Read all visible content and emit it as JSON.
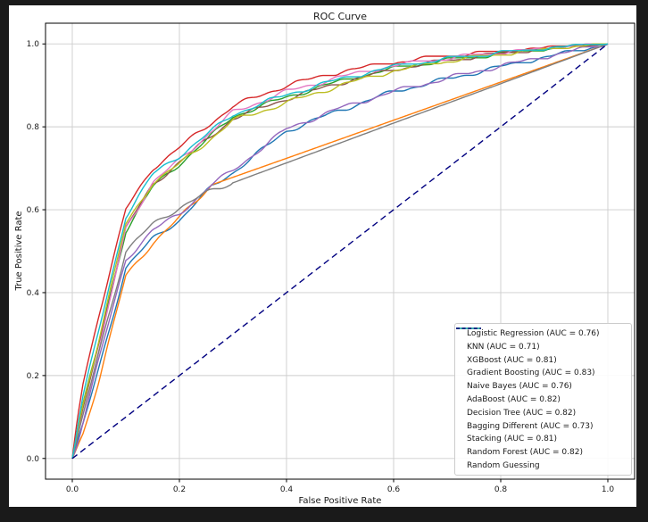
{
  "window": {
    "frame_color": "#1a1a1a",
    "figure_background": "#ffffff"
  },
  "chart_data": {
    "type": "line",
    "title": "ROC Curve",
    "xlabel": "False Positive Rate",
    "ylabel": "True Positive Rate",
    "xlim": [
      -0.05,
      1.05
    ],
    "ylim": [
      -0.05,
      1.05
    ],
    "xticks": [
      0.0,
      0.2,
      0.4,
      0.6,
      0.8,
      1.0
    ],
    "yticks": [
      0.0,
      0.2,
      0.4,
      0.6,
      0.8,
      1.0
    ],
    "xtick_labels": [
      "0.0",
      "0.2",
      "0.4",
      "0.6",
      "0.8",
      "1.0"
    ],
    "ytick_labels": [
      "0.0",
      "0.2",
      "0.4",
      "0.6",
      "0.8",
      "1.0"
    ],
    "grid": true,
    "grid_color": "#cdcdcd",
    "legend_position": "lower right",
    "series": [
      {
        "name": "Logistic Regression",
        "auc": 0.76,
        "label": "Logistic Regression (AUC = 0.76)",
        "color": "#1f77b4",
        "dash": false,
        "noise_amp": 0.004,
        "noise_until": 1.0,
        "x": [
          0,
          0.01,
          0.02,
          0.05,
          0.1,
          0.15,
          0.2,
          0.26,
          0.3,
          0.4,
          0.5,
          0.6,
          0.7,
          0.8,
          0.9,
          1.0
        ],
        "y": [
          0,
          0.04,
          0.08,
          0.22,
          0.46,
          0.53,
          0.575,
          0.655,
          0.69,
          0.79,
          0.84,
          0.885,
          0.915,
          0.945,
          0.972,
          1.0
        ]
      },
      {
        "name": "KNN",
        "auc": 0.71,
        "label": "KNN (AUC = 0.71)",
        "color": "#ff7f0e",
        "dash": false,
        "noise_amp": 0.004,
        "noise_until": 0.26,
        "x": [
          0,
          0.01,
          0.02,
          0.05,
          0.1,
          0.15,
          0.2,
          0.26,
          0.4,
          0.6,
          0.8,
          1.0
        ],
        "y": [
          0,
          0.03,
          0.06,
          0.19,
          0.44,
          0.52,
          0.58,
          0.66,
          0.724,
          0.816,
          0.908,
          1.0
        ]
      },
      {
        "name": "XGBoost",
        "auc": 0.81,
        "label": "XGBoost (AUC = 0.81)",
        "color": "#2ca02c",
        "dash": false,
        "noise_amp": 0.004,
        "noise_until": 1.0,
        "x": [
          0,
          0.01,
          0.02,
          0.05,
          0.1,
          0.15,
          0.2,
          0.3,
          0.4,
          0.5,
          0.6,
          0.7,
          0.8,
          0.9,
          1.0
        ],
        "y": [
          0,
          0.07,
          0.13,
          0.28,
          0.55,
          0.655,
          0.71,
          0.825,
          0.872,
          0.91,
          0.94,
          0.96,
          0.975,
          0.988,
          1.0
        ]
      },
      {
        "name": "Gradient Boosting",
        "auc": 0.83,
        "label": "Gradient Boosting (AUC = 0.83)",
        "color": "#d62728",
        "dash": false,
        "noise_amp": 0.004,
        "noise_until": 1.0,
        "x": [
          0,
          0.01,
          0.02,
          0.05,
          0.1,
          0.15,
          0.2,
          0.3,
          0.4,
          0.5,
          0.6,
          0.7,
          0.8,
          0.9,
          1.0
        ],
        "y": [
          0,
          0.1,
          0.18,
          0.35,
          0.6,
          0.7,
          0.75,
          0.85,
          0.9,
          0.933,
          0.955,
          0.97,
          0.981,
          0.991,
          1.0
        ]
      },
      {
        "name": "Naive Bayes",
        "auc": 0.76,
        "label": "Naive Bayes (AUC = 0.76)",
        "color": "#9467bd",
        "dash": false,
        "noise_amp": 0.004,
        "noise_until": 1.0,
        "x": [
          0,
          0.01,
          0.02,
          0.05,
          0.1,
          0.15,
          0.2,
          0.26,
          0.3,
          0.4,
          0.5,
          0.6,
          0.7,
          0.8,
          0.9,
          1.0
        ],
        "y": [
          0,
          0.04,
          0.09,
          0.24,
          0.48,
          0.55,
          0.59,
          0.66,
          0.695,
          0.795,
          0.845,
          0.885,
          0.917,
          0.947,
          0.973,
          1.0
        ]
      },
      {
        "name": "AdaBoost",
        "auc": 0.82,
        "label": "AdaBoost (AUC = 0.82)",
        "color": "#8c564b",
        "dash": false,
        "noise_amp": 0.004,
        "noise_until": 1.0,
        "x": [
          0,
          0.01,
          0.02,
          0.05,
          0.1,
          0.15,
          0.2,
          0.3,
          0.4,
          0.5,
          0.6,
          0.7,
          0.8,
          0.9,
          1.0
        ],
        "y": [
          0,
          0.06,
          0.12,
          0.28,
          0.555,
          0.66,
          0.715,
          0.82,
          0.868,
          0.906,
          0.938,
          0.96,
          0.976,
          0.989,
          1.0
        ]
      },
      {
        "name": "Decision Tree",
        "auc": 0.82,
        "label": "Decision Tree (AUC = 0.82)",
        "color": "#e377c2",
        "dash": false,
        "noise_amp": 0.004,
        "noise_until": 1.0,
        "x": [
          0,
          0.01,
          0.02,
          0.05,
          0.1,
          0.15,
          0.2,
          0.3,
          0.4,
          0.5,
          0.6,
          0.7,
          0.8,
          0.9,
          1.0
        ],
        "y": [
          0,
          0.06,
          0.11,
          0.26,
          0.555,
          0.665,
          0.72,
          0.835,
          0.885,
          0.92,
          0.947,
          0.965,
          0.978,
          0.99,
          1.0
        ]
      },
      {
        "name": "Bagging Different",
        "auc": 0.73,
        "label": "Bagging Different (AUC = 0.73)",
        "color": "#7f7f7f",
        "dash": false,
        "noise_amp": 0.004,
        "noise_until": 0.3,
        "x": [
          0,
          0.01,
          0.02,
          0.05,
          0.1,
          0.15,
          0.2,
          0.25,
          0.3,
          0.4,
          0.6,
          0.8,
          1.0
        ],
        "y": [
          0,
          0.05,
          0.1,
          0.26,
          0.5,
          0.565,
          0.605,
          0.64,
          0.665,
          0.713,
          0.809,
          0.904,
          1.0
        ]
      },
      {
        "name": "Stacking",
        "auc": 0.81,
        "label": "Stacking (AUC = 0.81)",
        "color": "#bcbd22",
        "dash": false,
        "noise_amp": 0.004,
        "noise_until": 1.0,
        "x": [
          0,
          0.01,
          0.02,
          0.05,
          0.1,
          0.15,
          0.2,
          0.3,
          0.4,
          0.5,
          0.6,
          0.7,
          0.8,
          0.9,
          1.0
        ],
        "y": [
          0,
          0.07,
          0.13,
          0.29,
          0.565,
          0.665,
          0.71,
          0.815,
          0.858,
          0.9,
          0.935,
          0.958,
          0.975,
          0.988,
          1.0
        ]
      },
      {
        "name": "Random Forest",
        "auc": 0.82,
        "label": "Random Forest (AUC = 0.82)",
        "color": "#17becf",
        "dash": false,
        "noise_amp": 0.004,
        "noise_until": 1.0,
        "x": [
          0,
          0.01,
          0.02,
          0.05,
          0.1,
          0.15,
          0.2,
          0.3,
          0.4,
          0.5,
          0.6,
          0.7,
          0.8,
          0.9,
          1.0
        ],
        "y": [
          0,
          0.08,
          0.15,
          0.31,
          0.585,
          0.685,
          0.73,
          0.83,
          0.878,
          0.915,
          0.945,
          0.963,
          0.978,
          0.99,
          1.0
        ]
      },
      {
        "name": "Random Guessing",
        "auc": null,
        "label": "Random Guessing",
        "color": "#000080",
        "dash": true,
        "noise_amp": 0,
        "noise_until": 0,
        "x": [
          0,
          1.0
        ],
        "y": [
          0,
          1.0
        ]
      }
    ]
  }
}
